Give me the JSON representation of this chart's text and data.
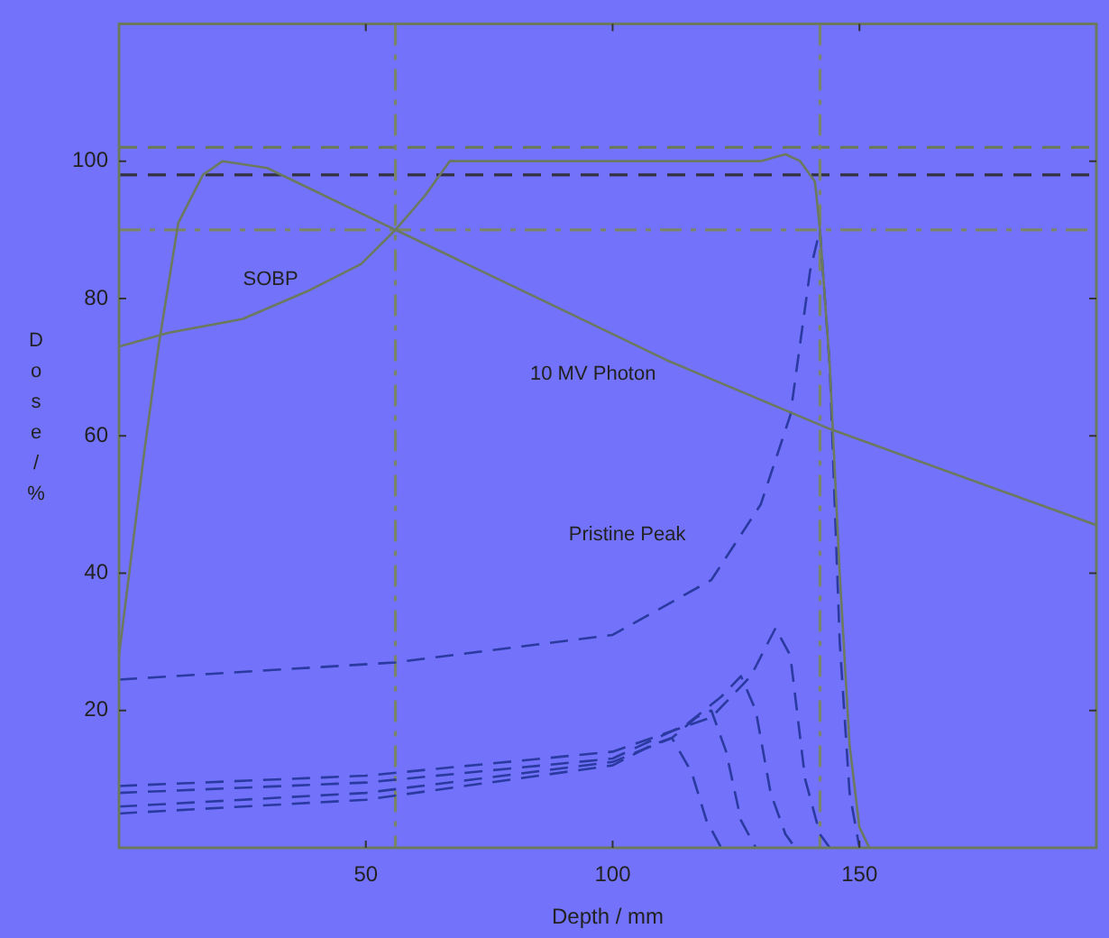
{
  "chart_data": {
    "type": "line",
    "xlabel": "Depth / mm",
    "ylabel": "Dose / %",
    "xlim": [
      0,
      198
    ],
    "ylim": [
      0,
      120
    ],
    "xticks": [
      50,
      100,
      150
    ],
    "yticks": [
      20,
      40,
      60,
      80,
      100
    ],
    "grid": false,
    "legend": false,
    "marker": "none",
    "series": [
      {
        "color": "#6b7a5e",
        "line_style": "solid",
        "x": [
          0,
          10,
          25,
          38,
          49,
          56,
          62,
          67,
          100,
          130,
          135,
          138,
          141,
          142,
          144,
          146,
          148,
          150,
          152
        ],
        "values": [
          73,
          75,
          77,
          81,
          85,
          90,
          95,
          100,
          100,
          100,
          101,
          100,
          97,
          90,
          70,
          40,
          15,
          3,
          0
        ]
      },
      {
        "color": "#6b7a5e",
        "line_style": "solid",
        "x": [
          0,
          5,
          8,
          12,
          17,
          21,
          30,
          56,
          85,
          111,
          144,
          198
        ],
        "values": [
          28,
          57,
          73,
          91,
          98,
          100,
          99,
          90,
          80,
          71,
          61,
          47
        ]
      },
      {
        "color": "#2a3aa0",
        "line_style": "dashed",
        "x": [
          0,
          56,
          100,
          120,
          130,
          136,
          140,
          142,
          144,
          146,
          148,
          150
        ],
        "values": [
          24.5,
          27,
          31,
          39,
          50,
          63,
          84,
          90,
          70,
          30,
          8,
          0
        ]
      },
      {
        "color": "#2a3aa0",
        "line_style": "dashed",
        "x": [
          0,
          50,
          100,
          120,
          128,
          133,
          136,
          139,
          142,
          144
        ],
        "values": [
          9,
          10.5,
          14,
          19,
          25,
          32,
          28,
          10,
          2,
          0
        ]
      },
      {
        "color": "#2a3aa0",
        "line_style": "dashed",
        "x": [
          0,
          50,
          100,
          115,
          122,
          126,
          129,
          132,
          135,
          137
        ],
        "values": [
          8,
          9.5,
          13,
          18,
          22,
          25,
          20,
          8,
          2,
          0
        ]
      },
      {
        "color": "#2a3aa0",
        "line_style": "dashed",
        "x": [
          0,
          50,
          100,
          112,
          117,
          120,
          123,
          126,
          129
        ],
        "values": [
          6,
          8,
          12.5,
          16,
          19,
          20,
          14,
          4,
          0
        ]
      },
      {
        "color": "#2a3aa0",
        "line_style": "dashed",
        "x": [
          0,
          50,
          100,
          108,
          112,
          116,
          119,
          122
        ],
        "values": [
          5,
          7,
          12,
          15,
          16,
          11,
          4,
          0
        ]
      }
    ],
    "ref_lines": [
      {
        "axis": "y",
        "value": 102,
        "color": "#6b7a5e",
        "line_style": "dashed"
      },
      {
        "axis": "y",
        "value": 98,
        "color": "#333344",
        "line_style": "dashed"
      },
      {
        "axis": "y",
        "value": 90,
        "color": "#7a8468",
        "line_style": "dashdot"
      },
      {
        "axis": "x",
        "value": 56,
        "color": "#7a8468",
        "line_style": "dashdot"
      },
      {
        "axis": "x",
        "value": 142,
        "color": "#7a8468",
        "line_style": "dashdot"
      }
    ],
    "annotations": [
      "SOBP",
      "10 MV Photon",
      "Pristine Peak"
    ]
  }
}
